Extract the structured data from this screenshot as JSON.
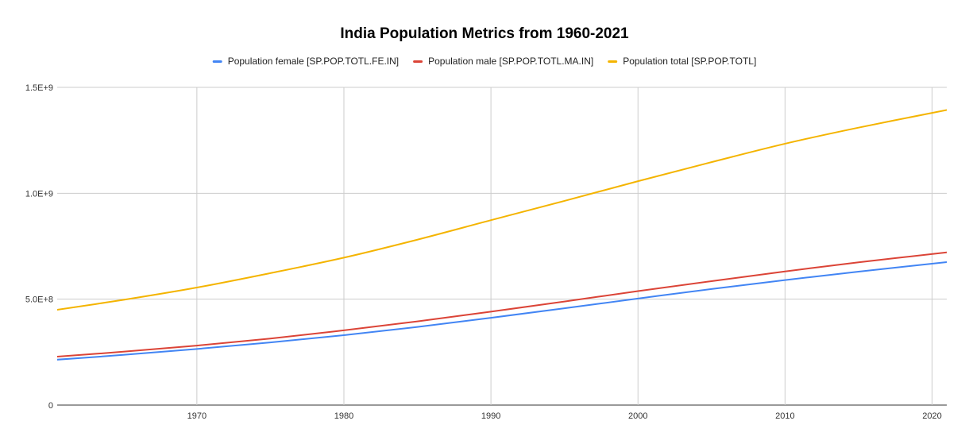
{
  "chart_data": {
    "type": "line",
    "title": "India Population Metrics from 1960-2021",
    "xlabel": "",
    "ylabel": "",
    "xlim": [
      1960.5,
      2021
    ],
    "ylim": [
      0,
      1500000000
    ],
    "x_ticks": [
      1970,
      1980,
      1990,
      2000,
      2010,
      2020
    ],
    "x_tick_labels": [
      "1970",
      "1980",
      "1990",
      "2000",
      "2010",
      "2020"
    ],
    "y_ticks": [
      0,
      500000000,
      1000000000,
      1500000000
    ],
    "y_tick_labels": [
      "0",
      "5.0E+8",
      "1.0E+9",
      "1.5E+9"
    ],
    "grid": true,
    "legend_position": "top-center",
    "x": [
      1960,
      1965,
      1970,
      1975,
      1980,
      1985,
      1990,
      1995,
      2000,
      2005,
      2010,
      2015,
      2021
    ],
    "series": [
      {
        "name": "Population female [SP.POP.TOTL.FE.IN]",
        "color": "#4285f4",
        "values": [
          212000000,
          237000000,
          265000000,
          296000000,
          330000000,
          369000000,
          412000000,
          457000000,
          503000000,
          548000000,
          590000000,
          630000000,
          675000000
        ]
      },
      {
        "name": "Population male [SP.POP.TOTL.MA.IN]",
        "color": "#db4437",
        "values": [
          226000000,
          252000000,
          281000000,
          314000000,
          353000000,
          395000000,
          441000000,
          489000000,
          538000000,
          585000000,
          631000000,
          674000000,
          721000000
        ]
      },
      {
        "name": "Population total [SP.POP.TOTL]",
        "color": "#f4b400",
        "values": [
          445000000,
          497000000,
          555000000,
          623000000,
          696000000,
          781000000,
          873000000,
          964000000,
          1057000000,
          1147000000,
          1234000000,
          1310000000,
          1393000000
        ]
      }
    ]
  }
}
